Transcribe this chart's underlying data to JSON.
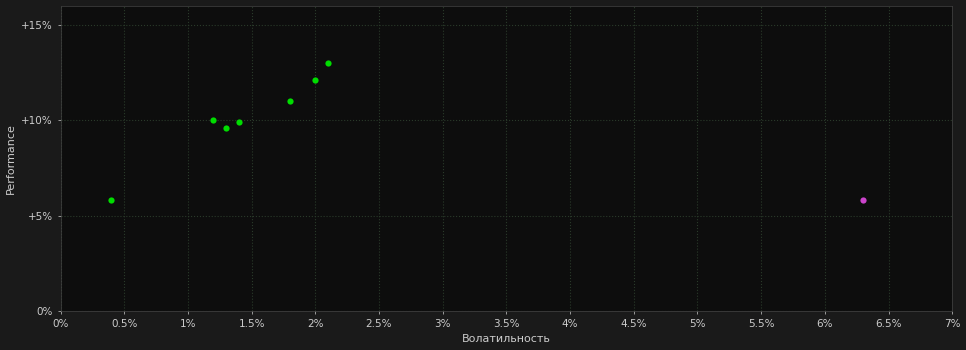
{
  "background_color": "#1a1a1a",
  "plot_bg_color": "#0d0d0d",
  "grid_color": "#2a3a2a",
  "grid_style": ":",
  "xlabel": "Волатильность",
  "ylabel": "Performance",
  "x_ticks": [
    0.0,
    0.005,
    0.01,
    0.015,
    0.02,
    0.025,
    0.03,
    0.035,
    0.04,
    0.045,
    0.05,
    0.055,
    0.06,
    0.065,
    0.07
  ],
  "x_tick_labels": [
    "0%",
    "0.5%",
    "1%",
    "1.5%",
    "2%",
    "2.5%",
    "3%",
    "3.5%",
    "4%",
    "4.5%",
    "5%",
    "5.5%",
    "6%",
    "6.5%",
    "7%"
  ],
  "y_ticks": [
    0.0,
    0.05,
    0.1,
    0.15
  ],
  "y_tick_labels": [
    "0%",
    "+5%",
    "+10%",
    "+15%"
  ],
  "xlim": [
    0.0,
    0.07
  ],
  "ylim": [
    0.0,
    0.16
  ],
  "green_dots": [
    [
      0.004,
      0.058
    ],
    [
      0.012,
      0.1
    ],
    [
      0.013,
      0.096
    ],
    [
      0.014,
      0.099
    ],
    [
      0.018,
      0.11
    ],
    [
      0.02,
      0.121
    ],
    [
      0.021,
      0.13
    ]
  ],
  "magenta_dot": [
    0.063,
    0.058
  ],
  "dot_color_green": "#00dd00",
  "dot_color_magenta": "#cc44cc",
  "dot_size": 20,
  "xlabel_fontsize": 8,
  "ylabel_fontsize": 8,
  "tick_fontsize": 7.5,
  "tick_color": "#cccccc",
  "label_color": "#cccccc",
  "spine_color": "#444444"
}
